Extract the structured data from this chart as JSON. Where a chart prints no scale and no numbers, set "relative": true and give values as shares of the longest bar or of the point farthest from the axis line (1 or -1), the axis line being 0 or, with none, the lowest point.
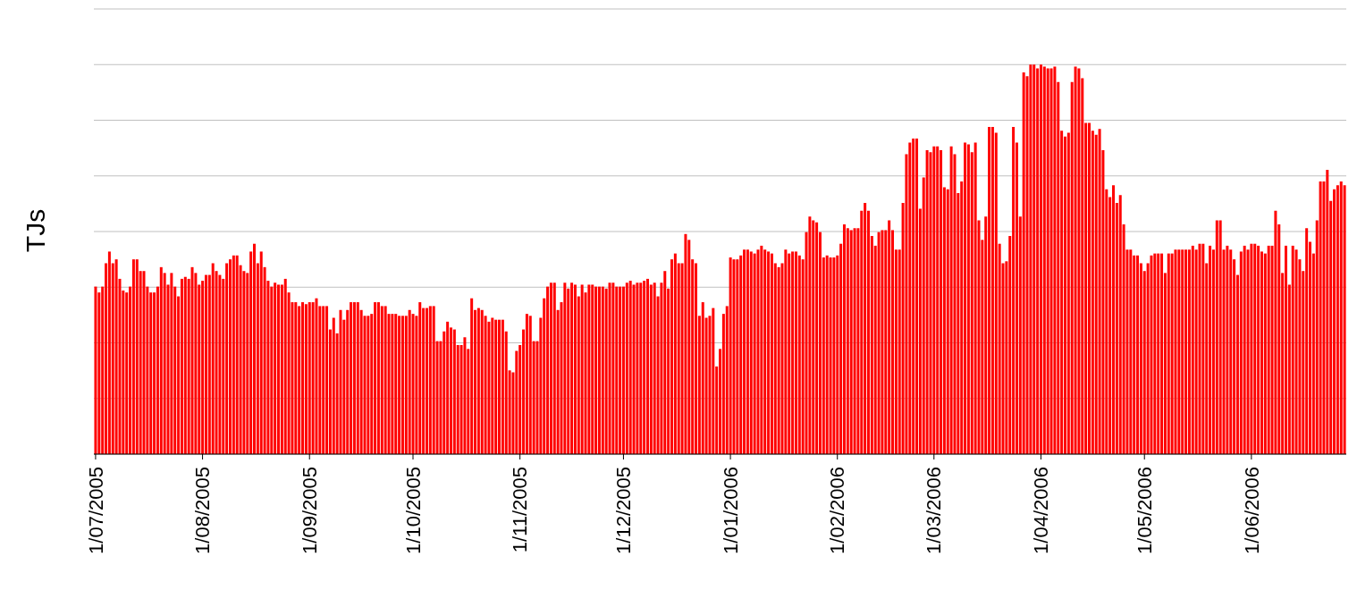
{
  "chart_data": {
    "type": "bar",
    "ylabel": "TJs",
    "relative": true,
    "grid": "y",
    "color": "#ff0000",
    "categories": [
      "1/07/2005",
      null,
      null,
      null,
      null,
      null,
      null,
      null,
      null,
      null,
      null,
      null,
      null,
      null,
      null,
      null,
      null,
      null,
      null,
      null,
      null,
      null,
      null,
      null,
      null,
      null,
      null,
      null,
      null,
      null,
      null,
      "1/08/2005",
      null,
      null,
      null,
      null,
      null,
      null,
      null,
      null,
      null,
      null,
      null,
      null,
      null,
      null,
      null,
      null,
      null,
      null,
      null,
      null,
      null,
      null,
      null,
      null,
      null,
      null,
      null,
      null,
      null,
      null,
      "1/09/2005",
      null,
      null,
      null,
      null,
      null,
      null,
      null,
      null,
      null,
      null,
      null,
      null,
      null,
      null,
      null,
      null,
      null,
      null,
      null,
      null,
      null,
      null,
      null,
      null,
      null,
      null,
      null,
      null,
      null,
      "1/10/2005",
      null,
      null,
      null,
      null,
      null,
      null,
      null,
      null,
      null,
      null,
      null,
      null,
      null,
      null,
      null,
      null,
      null,
      null,
      null,
      null,
      null,
      null,
      null,
      null,
      null,
      null,
      null,
      null,
      null,
      null,
      "1/11/2005",
      null,
      null,
      null,
      null,
      null,
      null,
      null,
      null,
      null,
      null,
      null,
      null,
      null,
      null,
      null,
      null,
      null,
      null,
      null,
      null,
      null,
      null,
      null,
      null,
      null,
      null,
      null,
      null,
      null,
      "1/12/2005",
      null,
      null,
      null,
      null,
      null,
      null,
      null,
      null,
      null,
      null,
      null,
      null,
      null,
      null,
      null,
      null,
      null,
      null,
      null,
      null,
      null,
      null,
      null,
      null,
      null,
      null,
      null,
      null,
      null,
      null,
      "1/01/2006",
      null,
      null,
      null,
      null,
      null,
      null,
      null,
      null,
      null,
      null,
      null,
      null,
      null,
      null,
      null,
      null,
      null,
      null,
      null,
      null,
      null,
      null,
      null,
      null,
      null,
      null,
      null,
      null,
      null,
      null,
      "1/02/2006",
      null,
      null,
      null,
      null,
      null,
      null,
      null,
      null,
      null,
      null,
      null,
      null,
      null,
      null,
      null,
      null,
      null,
      null,
      null,
      null,
      null,
      null,
      null,
      null,
      null,
      null,
      null,
      "1/03/2006",
      null,
      null,
      null,
      null,
      null,
      null,
      null,
      null,
      null,
      null,
      null,
      null,
      null,
      null,
      null,
      null,
      null,
      null,
      null,
      null,
      null,
      null,
      null,
      null,
      null,
      null,
      null,
      null,
      null,
      null,
      "1/04/2006",
      null,
      null,
      null,
      null,
      null,
      null,
      null,
      null,
      null,
      null,
      null,
      null,
      null,
      null,
      null,
      null,
      null,
      null,
      null,
      null,
      null,
      null,
      null,
      null,
      null,
      null,
      null,
      null,
      null,
      "1/05/2006",
      null,
      null,
      null,
      null,
      null,
      null,
      null,
      null,
      null,
      null,
      null,
      null,
      null,
      null,
      null,
      null,
      null,
      null,
      null,
      null,
      null,
      null,
      null,
      null,
      null,
      null,
      null,
      null,
      null,
      null,
      "1/06/2006",
      null,
      null,
      null,
      null,
      null,
      null,
      null,
      null,
      null,
      null,
      null,
      null,
      null,
      null,
      null,
      null,
      null,
      null,
      null,
      null,
      null,
      null,
      null,
      null,
      null,
      null,
      null
    ],
    "values": [
      0.43,
      0.415,
      0.43,
      0.49,
      0.52,
      0.49,
      0.5,
      0.45,
      0.42,
      0.415,
      0.43,
      0.5,
      0.5,
      0.47,
      0.47,
      0.43,
      0.415,
      0.415,
      0.43,
      0.48,
      0.465,
      0.435,
      0.465,
      0.43,
      0.405,
      0.45,
      0.455,
      0.45,
      0.48,
      0.465,
      0.435,
      0.445,
      0.46,
      0.46,
      0.49,
      0.47,
      0.46,
      0.45,
      0.49,
      0.5,
      0.51,
      0.51,
      0.485,
      0.47,
      0.465,
      0.52,
      0.54,
      0.49,
      0.52,
      0.48,
      0.445,
      0.43,
      0.44,
      0.435,
      0.435,
      0.45,
      0.415,
      0.39,
      0.39,
      0.38,
      0.39,
      0.385,
      0.39,
      0.39,
      0.4,
      0.38,
      0.38,
      0.38,
      0.32,
      0.35,
      0.31,
      0.37,
      0.345,
      0.37,
      0.39,
      0.39,
      0.39,
      0.37,
      0.355,
      0.355,
      0.36,
      0.39,
      0.39,
      0.38,
      0.38,
      0.36,
      0.36,
      0.36,
      0.355,
      0.355,
      0.355,
      0.37,
      0.36,
      0.355,
      0.39,
      0.375,
      0.375,
      0.38,
      0.38,
      0.29,
      0.29,
      0.315,
      0.34,
      0.325,
      0.32,
      0.28,
      0.28,
      0.3,
      0.27,
      0.4,
      0.37,
      0.375,
      0.37,
      0.355,
      0.34,
      0.35,
      0.345,
      0.345,
      0.345,
      0.315,
      0.215,
      0.21,
      0.265,
      0.28,
      0.32,
      0.36,
      0.355,
      0.29,
      0.29,
      0.35,
      0.4,
      0.43,
      0.44,
      0.44,
      0.37,
      0.39,
      0.44,
      0.425,
      0.44,
      0.435,
      0.405,
      0.435,
      0.415,
      0.435,
      0.435,
      0.43,
      0.43,
      0.43,
      0.425,
      0.44,
      0.44,
      0.43,
      0.43,
      0.43,
      0.44,
      0.445,
      0.435,
      0.44,
      0.44,
      0.445,
      0.45,
      0.435,
      0.44,
      0.405,
      0.44,
      0.47,
      0.425,
      0.5,
      0.515,
      0.49,
      0.49,
      0.565,
      0.55,
      0.5,
      0.49,
      0.355,
      0.39,
      0.35,
      0.355,
      0.375,
      0.225,
      0.27,
      0.36,
      0.38,
      0.505,
      0.5,
      0.5,
      0.51,
      0.525,
      0.525,
      0.52,
      0.515,
      0.525,
      0.535,
      0.525,
      0.52,
      0.515,
      0.49,
      0.48,
      0.49,
      0.525,
      0.515,
      0.52,
      0.52,
      0.51,
      0.5,
      0.57,
      0.61,
      0.6,
      0.595,
      0.57,
      0.505,
      0.51,
      0.505,
      0.505,
      0.51,
      0.54,
      0.59,
      0.58,
      0.575,
      0.58,
      0.58,
      0.625,
      0.645,
      0.625,
      0.56,
      0.535,
      0.57,
      0.575,
      0.575,
      0.6,
      0.575,
      0.525,
      0.525,
      0.645,
      0.77,
      0.8,
      0.81,
      0.81,
      0.63,
      0.71,
      0.78,
      0.775,
      0.79,
      0.79,
      0.78,
      0.685,
      0.68,
      0.79,
      0.77,
      0.67,
      0.7,
      0.8,
      0.795,
      0.775,
      0.8,
      0.6,
      0.55,
      0.61,
      0.84,
      0.84,
      0.825,
      0.54,
      0.49,
      0.495,
      0.56,
      0.84,
      0.8,
      0.61,
      0.98,
      0.97,
      1.0,
      1.0,
      0.99,
      1.0,
      0.995,
      0.99,
      0.99,
      0.995,
      0.955,
      0.83,
      0.815,
      0.825,
      0.955,
      0.995,
      0.99,
      0.965,
      0.85,
      0.85,
      0.83,
      0.82,
      0.835,
      0.78,
      0.68,
      0.66,
      0.69,
      0.645,
      0.665,
      0.59,
      0.525,
      0.525,
      0.51,
      0.51,
      0.49,
      0.47,
      0.49,
      0.51,
      0.515,
      0.515,
      0.515,
      0.465,
      0.515,
      0.515,
      0.525,
      0.525,
      0.525,
      0.525,
      0.525,
      0.535,
      0.525,
      0.54,
      0.54,
      0.49,
      0.535,
      0.525,
      0.6,
      0.6,
      0.525,
      0.535,
      0.525,
      0.5,
      0.46,
      0.52,
      0.535,
      0.525,
      0.54,
      0.54,
      0.535,
      0.52,
      0.515,
      0.535,
      0.535,
      0.625,
      0.59,
      0.465,
      0.535,
      0.435,
      0.535,
      0.525,
      0.5,
      0.47,
      0.58,
      0.545,
      0.515,
      0.6,
      0.7,
      0.7,
      0.73,
      0.65,
      0.68,
      0.69,
      0.7,
      0.69
    ]
  }
}
